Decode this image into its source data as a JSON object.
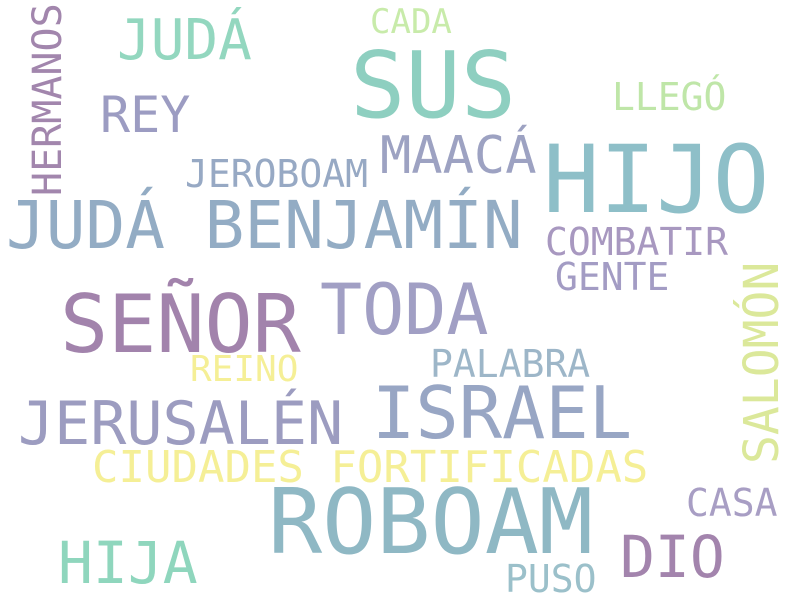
{
  "words": {
    "roboam": {
      "text": "ROBOAM",
      "color": "#8fb8c4"
    },
    "sus": {
      "text": "SUS",
      "color": "#8ecfc0"
    },
    "hijo": {
      "text": "HIJO",
      "color": "#8ebfc8"
    },
    "judabenjamin": {
      "text": "JUDÁ BENJAMÍN",
      "color": "#93acc4"
    },
    "senor": {
      "text": "SEÑOR",
      "color": "#a283ac"
    },
    "toda": {
      "text": "TODA",
      "color": "#a19fc4"
    },
    "israel": {
      "text": "ISRAEL",
      "color": "#98a6c4"
    },
    "jerusalen": {
      "text": "JERUSALÉN",
      "color": "#9c9cc0"
    },
    "ciudades": {
      "text": "CIUDADES FORTIFICADAS",
      "color": "#f5ef96"
    },
    "juda": {
      "text": "JUDÁ",
      "color": "#93d7bf"
    },
    "hija": {
      "text": "HIJA",
      "color": "#8fd6bd"
    },
    "dio": {
      "text": "DIO",
      "color": "#a384ad"
    },
    "maaca": {
      "text": "MAACÁ",
      "color": "#9da2c2"
    },
    "rey": {
      "text": "REY",
      "color": "#9c9cc2"
    },
    "salomon": {
      "text": "SALOMÓN",
      "color": "#dbe89a"
    },
    "hermanos": {
      "text": "HERMANOS",
      "color": "#a286ad"
    },
    "cada": {
      "text": "CADA",
      "color": "#c8ebaa"
    },
    "llego": {
      "text": "LLEGÓ",
      "color": "#bfe6a8"
    },
    "jeroboam": {
      "text": "JEROBOAM",
      "color": "#97a9c4"
    },
    "combatir": {
      "text": "COMBATIR",
      "color": "#a898c0"
    },
    "gente": {
      "text": "GENTE",
      "color": "#a39cc4"
    },
    "palabra": {
      "text": "PALABRA",
      "color": "#9db6c8"
    },
    "reino": {
      "text": "REINO",
      "color": "#f5ef96"
    },
    "casa": {
      "text": "CASA",
      "color": "#a89ec4"
    },
    "puso": {
      "text": "PUSO",
      "color": "#9bc0ca"
    }
  }
}
